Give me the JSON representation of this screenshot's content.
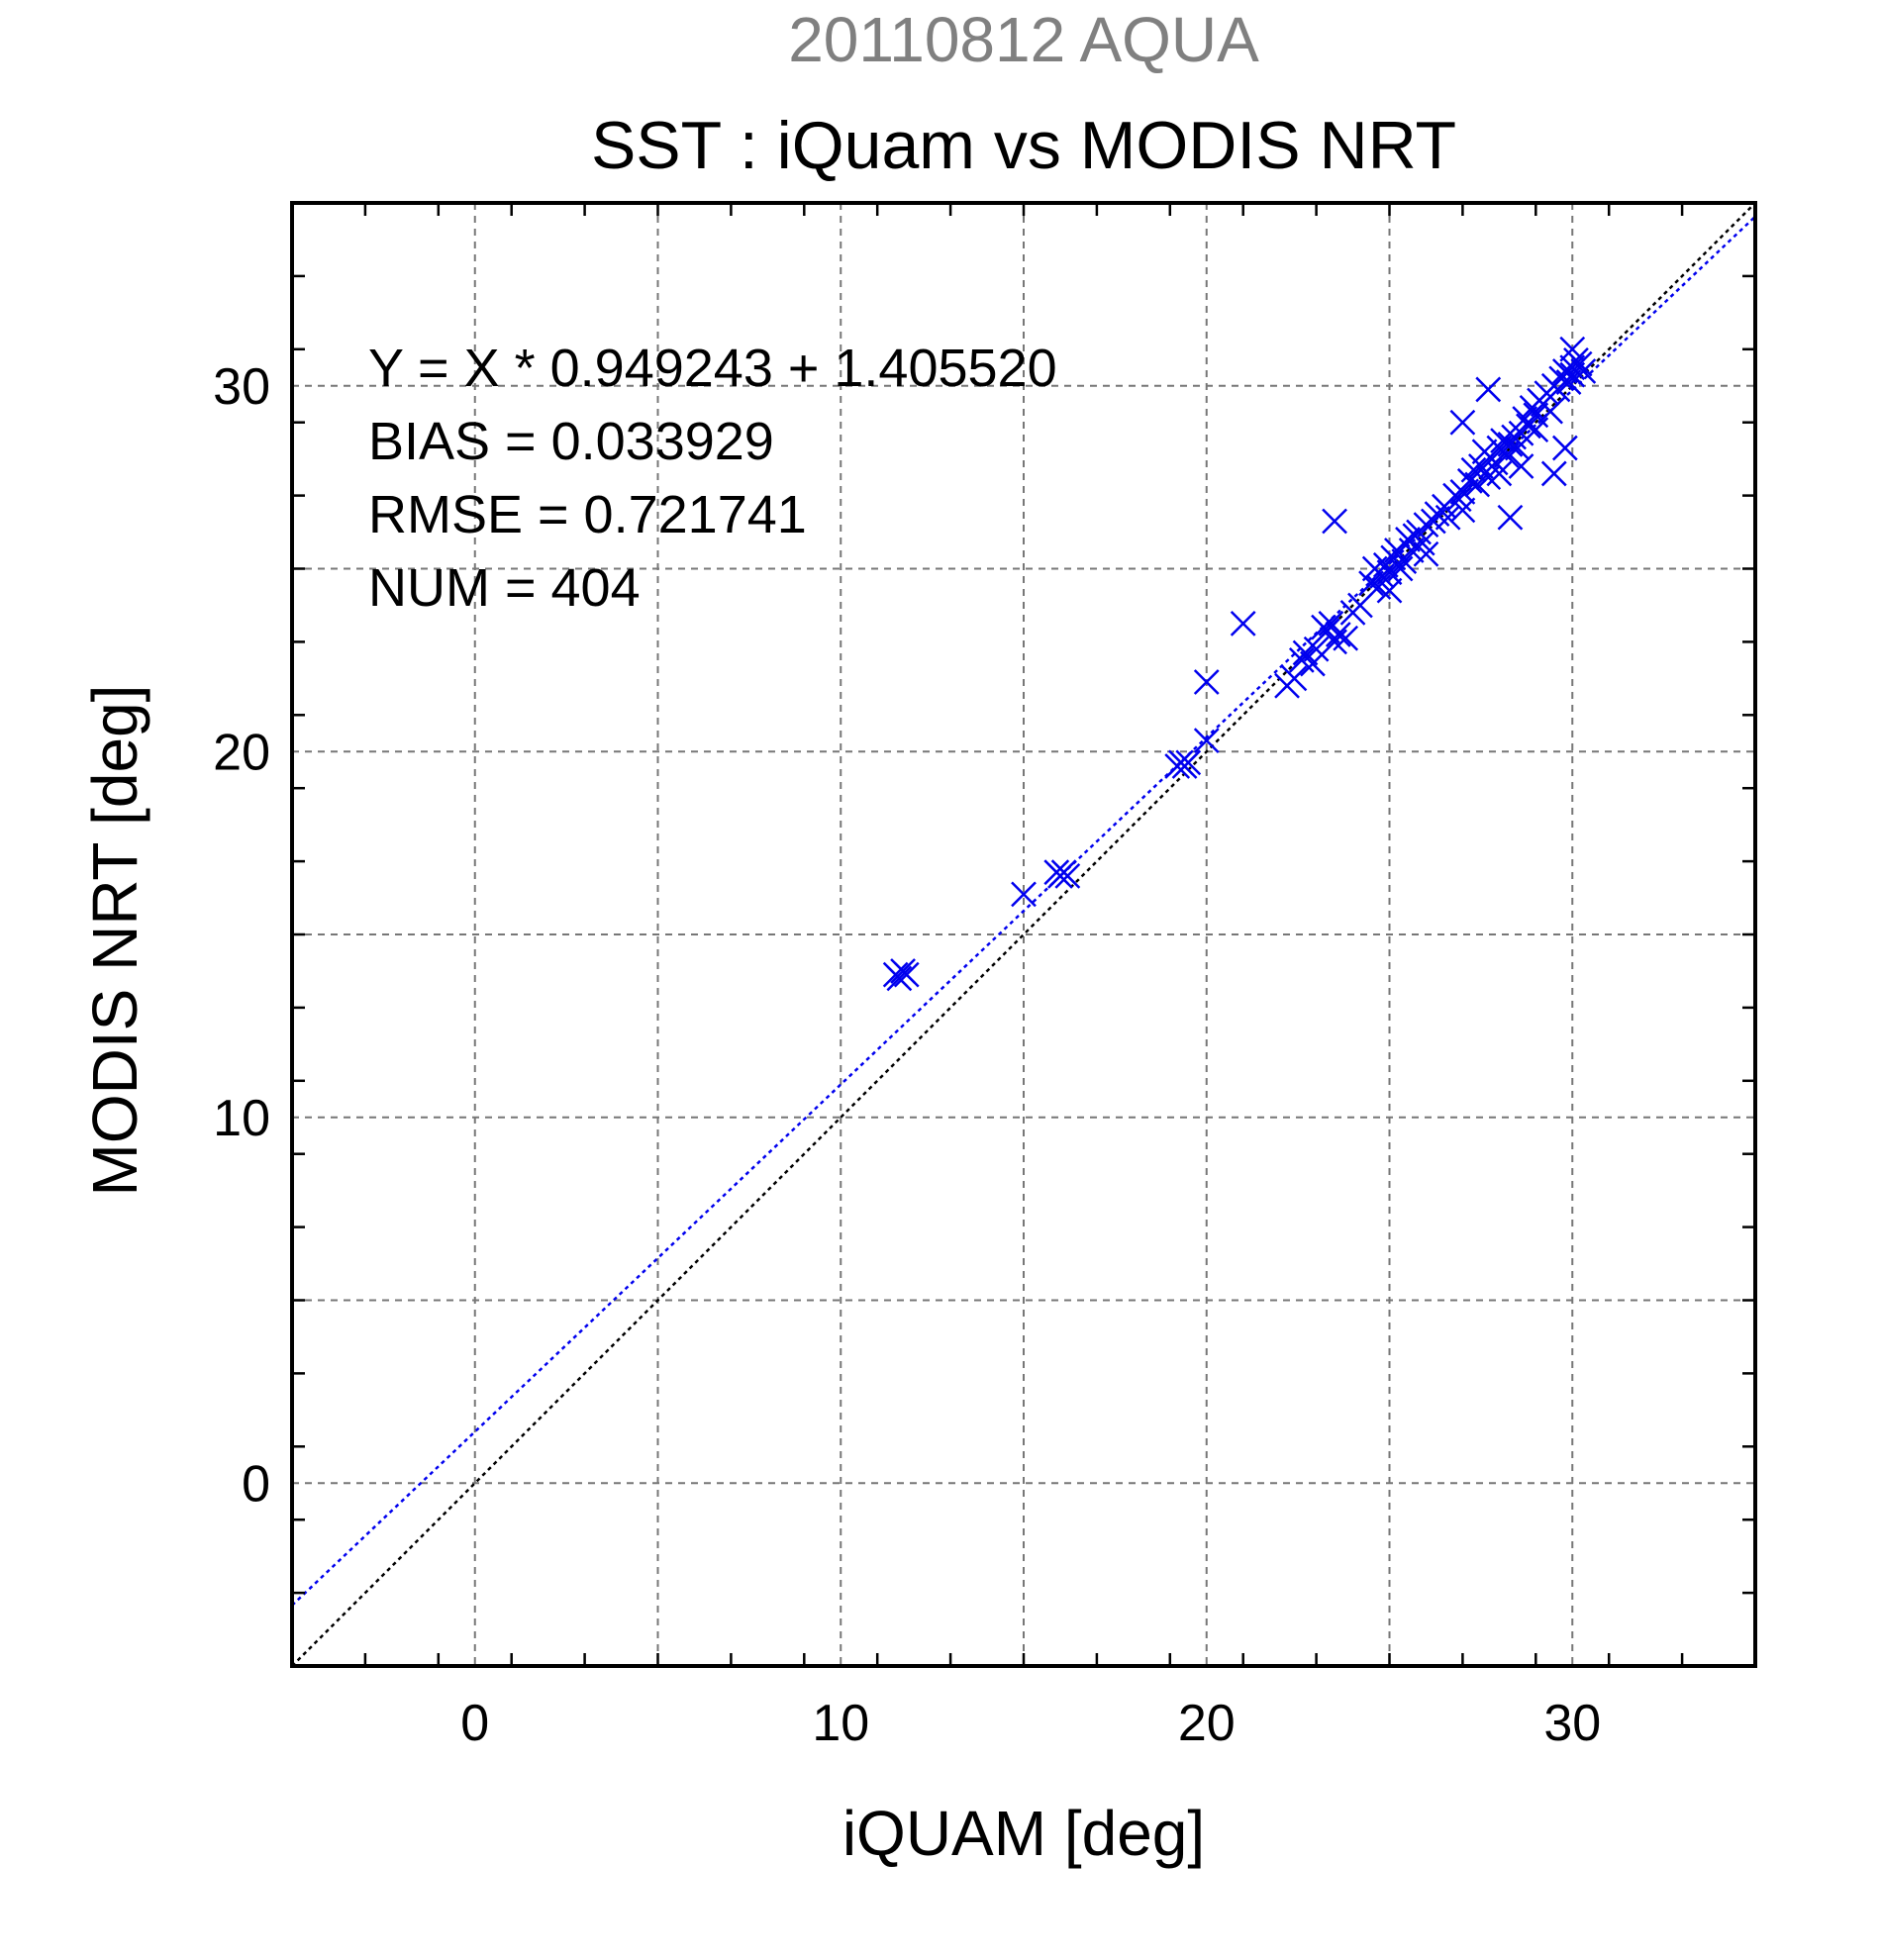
{
  "chart_data": {
    "type": "scatter",
    "supertitle": "20110812 AQUA",
    "title": "SST : iQuam vs MODIS NRT",
    "xlabel": "iQUAM [deg]",
    "ylabel": "MODIS NRT [deg]",
    "xlim": [
      -5,
      35
    ],
    "ylim": [
      -5,
      35
    ],
    "xticks": [
      0,
      10,
      20,
      30
    ],
    "yticks": [
      0,
      10,
      20,
      30
    ],
    "xtick_labels": [
      "0",
      "10",
      "20",
      "30"
    ],
    "ytick_labels": [
      "0",
      "10",
      "20",
      "30"
    ],
    "grid": true,
    "grid_step": 5,
    "marker": "x",
    "colors": {
      "points": "#0000ee",
      "fit_line": "#0000ee",
      "identity_line": "#000000",
      "grid": "#777777",
      "supertitle": "#808080"
    },
    "stats": [
      "Y = X * 0.949243 + 1.405520",
      "BIAS = 0.033929",
      "RMSE = 0.721741",
      "NUM = 404"
    ],
    "fit": {
      "slope": 0.949243,
      "intercept": 1.40552
    },
    "series": [
      {
        "x": [
          11.5,
          11.6,
          11.7,
          11.8,
          15.0,
          15.9,
          16.0,
          16.1,
          16.2,
          19.2,
          19.3,
          19.4,
          19.5,
          20.0,
          20.0,
          21.0,
          22.2,
          22.4,
          22.6,
          22.7,
          22.9,
          23.0,
          23.2,
          23.3,
          23.4,
          23.5,
          23.5,
          23.6,
          23.8,
          24.0,
          24.2,
          24.5,
          24.6,
          24.7,
          24.8,
          24.9,
          25.0,
          25.0,
          25.1,
          25.2,
          25.3,
          25.4,
          25.5,
          25.6,
          25.7,
          25.8,
          25.9,
          26.0,
          26.0,
          26.2,
          26.3,
          26.5,
          26.6,
          26.8,
          26.9,
          27.0,
          27.0,
          27.2,
          27.3,
          27.4,
          27.5,
          27.6,
          27.7,
          27.8,
          27.9,
          28.0,
          28.0,
          28.1,
          28.2,
          28.3,
          28.4,
          28.5,
          28.6,
          28.7,
          28.8,
          28.9,
          29.0,
          29.0,
          29.1,
          29.2,
          29.3,
          29.4,
          29.5,
          29.6,
          29.7,
          29.8,
          29.9,
          30.0,
          30.0,
          30.1,
          30.2,
          30.3,
          27.0,
          27.7,
          28.3,
          28.6,
          29.5,
          29.8,
          30.0
        ],
        "y": [
          13.9,
          13.8,
          14.0,
          13.9,
          16.1,
          16.7,
          16.6,
          16.7,
          16.6,
          19.6,
          19.7,
          19.6,
          19.7,
          21.9,
          20.3,
          23.5,
          21.8,
          22.0,
          22.5,
          22.7,
          22.4,
          22.8,
          23.4,
          23.3,
          23.5,
          23.0,
          26.3,
          23.2,
          23.1,
          23.8,
          24.0,
          24.6,
          25.0,
          24.5,
          24.8,
          25.1,
          24.9,
          24.4,
          25.3,
          25.5,
          25.0,
          25.2,
          25.8,
          25.5,
          25.9,
          26.0,
          25.7,
          26.2,
          25.4,
          26.3,
          26.5,
          26.7,
          26.4,
          27.0,
          26.9,
          27.1,
          26.6,
          27.4,
          27.7,
          27.3,
          27.8,
          28.2,
          27.5,
          28.0,
          27.9,
          28.3,
          27.6,
          28.5,
          28.1,
          28.4,
          28.6,
          28.3,
          28.7,
          29.1,
          28.9,
          29.4,
          29.2,
          28.8,
          29.6,
          29.5,
          29.8,
          29.3,
          30.0,
          29.9,
          30.2,
          30.4,
          30.1,
          30.5,
          30.3,
          30.7,
          30.6,
          30.4,
          29.0,
          29.9,
          26.4,
          27.8,
          27.6,
          28.3,
          31.0
        ]
      }
    ]
  }
}
